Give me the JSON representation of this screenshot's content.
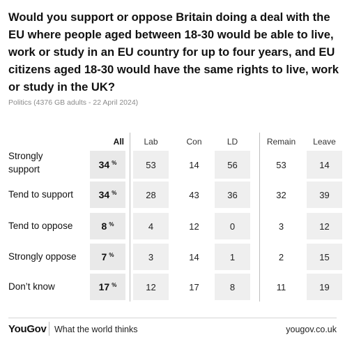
{
  "chart_data": {
    "type": "table",
    "title": "Would you support or oppose Britain doing a deal with the EU where people aged between 18-30 would be able to live, work or study in an EU country for up to four years, and EU citizens aged 18-30 would have the same rights to live, work or study in the UK?",
    "subtitle": "Politics (4376 GB adults - 22 April 2024)",
    "columns": [
      "All",
      "Lab",
      "Con",
      "LD",
      "Remain",
      "Leave"
    ],
    "unit": "%",
    "rows": [
      {
        "label": "Strongly support",
        "values": [
          34,
          53,
          14,
          56,
          53,
          14
        ]
      },
      {
        "label": "Tend to support",
        "values": [
          34,
          28,
          43,
          36,
          32,
          39
        ]
      },
      {
        "label": "Tend to oppose",
        "values": [
          8,
          4,
          12,
          0,
          3,
          12
        ]
      },
      {
        "label": "Strongly oppose",
        "values": [
          7,
          3,
          14,
          1,
          2,
          15
        ]
      },
      {
        "label": "Don’t know",
        "values": [
          17,
          12,
          17,
          8,
          11,
          19
        ]
      }
    ]
  },
  "footer": {
    "logo": "YouGov",
    "tagline": "What the world thinks",
    "site": "yougov.co.uk"
  },
  "colors": {
    "all_cell_bg": "#e9e9e9",
    "grey_cell_bg": "#efefef",
    "text": "#111111",
    "subtitle": "#8a8a8a"
  }
}
